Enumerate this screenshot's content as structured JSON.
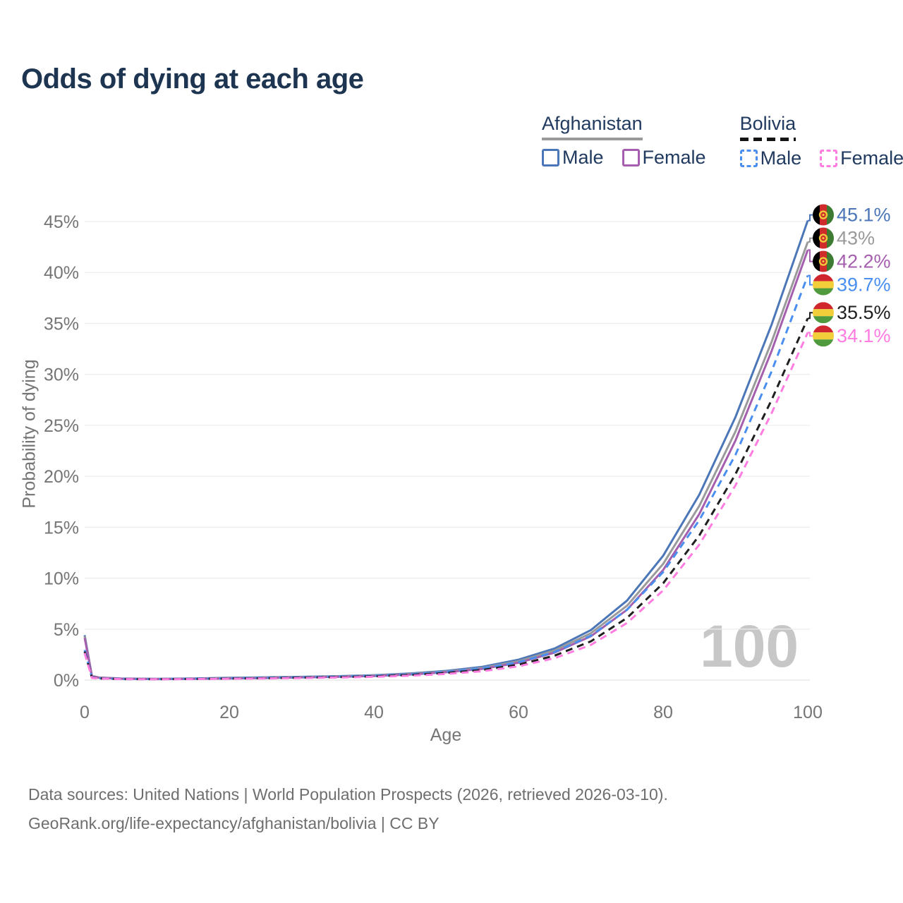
{
  "page": {
    "title": "Odds of dying at each age",
    "watermark": "100"
  },
  "legend": {
    "groups": [
      {
        "country": "Afghanistan",
        "underline_style": "solid",
        "underline_color": "#9a9a9a",
        "items": [
          {
            "label": "Male",
            "color": "#4b76b8",
            "dashed": false
          },
          {
            "label": "Female",
            "color": "#a55fae",
            "dashed": false
          }
        ]
      },
      {
        "country": "Bolivia",
        "underline_style": "dashed",
        "underline_color": "#141414",
        "items": [
          {
            "label": "Male",
            "color": "#4a8ff0",
            "dashed": true
          },
          {
            "label": "Female",
            "color": "#ff7de0",
            "dashed": true
          }
        ]
      }
    ]
  },
  "axes": {
    "y_label": "Probability of dying",
    "x_label": "Age",
    "y_ticks": [
      {
        "v": 0,
        "label": "0%"
      },
      {
        "v": 5,
        "label": "5%"
      },
      {
        "v": 10,
        "label": "10%"
      },
      {
        "v": 15,
        "label": "15%"
      },
      {
        "v": 20,
        "label": "20%"
      },
      {
        "v": 25,
        "label": "25%"
      },
      {
        "v": 30,
        "label": "30%"
      },
      {
        "v": 35,
        "label": "35%"
      },
      {
        "v": 40,
        "label": "40%"
      },
      {
        "v": 45,
        "label": "45%"
      }
    ],
    "x_ticks": [
      {
        "v": 0,
        "label": "0"
      },
      {
        "v": 20,
        "label": "20"
      },
      {
        "v": 40,
        "label": "40"
      },
      {
        "v": 60,
        "label": "60"
      },
      {
        "v": 80,
        "label": "80"
      },
      {
        "v": 100,
        "label": "100"
      }
    ]
  },
  "footer": {
    "line1": "Data sources: United Nations | World Population Prospects (2026, retrieved 2026-03-10).",
    "line2": "GeoRank.org/life-expectancy/afghanistan/bolivia | CC BY"
  },
  "chart_data": {
    "type": "line",
    "title": "Odds of dying at each age",
    "xlabel": "Age",
    "ylabel": "Probability of dying",
    "xlim": [
      0,
      100
    ],
    "ylim": [
      0,
      45
    ],
    "grid": true,
    "legend_position": "top-right",
    "x": [
      0,
      1,
      2,
      5,
      10,
      15,
      20,
      25,
      30,
      35,
      40,
      45,
      50,
      55,
      60,
      65,
      70,
      75,
      80,
      85,
      90,
      95,
      100
    ],
    "series": [
      {
        "name": "Afghanistan Male",
        "country": "Afghanistan",
        "sex": "Male",
        "style": "solid",
        "color": "#4b76b8",
        "flag": "afghanistan",
        "end_label": "45.1%",
        "values": [
          4.4,
          0.4,
          0.25,
          0.15,
          0.12,
          0.16,
          0.22,
          0.27,
          0.32,
          0.38,
          0.48,
          0.65,
          0.9,
          1.3,
          2.0,
          3.1,
          4.9,
          7.8,
          12.2,
          18.2,
          25.8,
          34.9,
          45.1
        ]
      },
      {
        "name": "Afghanistan Both sexes",
        "country": "Afghanistan",
        "sex": "Both",
        "style": "solid",
        "color": "#9a9a9a",
        "flag": "afghanistan",
        "end_label": "43%",
        "values": [
          4.3,
          0.38,
          0.24,
          0.14,
          0.11,
          0.14,
          0.19,
          0.24,
          0.29,
          0.35,
          0.44,
          0.6,
          0.83,
          1.2,
          1.85,
          2.9,
          4.6,
          7.3,
          11.4,
          17.1,
          24.4,
          33.2,
          43.0
        ]
      },
      {
        "name": "Afghanistan Female",
        "country": "Afghanistan",
        "sex": "Female",
        "style": "solid",
        "color": "#a55fae",
        "flag": "afghanistan",
        "end_label": "42.2%",
        "values": [
          4.15,
          0.36,
          0.23,
          0.13,
          0.1,
          0.12,
          0.16,
          0.2,
          0.26,
          0.32,
          0.4,
          0.55,
          0.77,
          1.1,
          1.7,
          2.7,
          4.3,
          6.9,
          10.8,
          16.3,
          23.5,
          32.3,
          42.2
        ]
      },
      {
        "name": "Bolivia Male",
        "country": "Bolivia",
        "sex": "Male",
        "style": "dashed",
        "color": "#4a8ff0",
        "flag": "bolivia",
        "end_label": "39.7%",
        "values": [
          2.95,
          0.25,
          0.17,
          0.11,
          0.1,
          0.13,
          0.18,
          0.23,
          0.28,
          0.34,
          0.42,
          0.57,
          0.8,
          1.15,
          1.75,
          2.75,
          4.35,
          6.9,
          10.6,
          15.7,
          22.1,
          30.3,
          39.7
        ]
      },
      {
        "name": "Bolivia Both sexes",
        "country": "Bolivia",
        "sex": "Both",
        "style": "dashed",
        "color": "#1f1f1f",
        "flag": "bolivia",
        "end_label": "35.5%",
        "values": [
          2.8,
          0.23,
          0.16,
          0.1,
          0.09,
          0.11,
          0.15,
          0.19,
          0.24,
          0.29,
          0.37,
          0.5,
          0.7,
          1.0,
          1.5,
          2.4,
          3.8,
          6.1,
          9.5,
          14.2,
          20.2,
          27.5,
          35.5
        ]
      },
      {
        "name": "Bolivia Female",
        "country": "Bolivia",
        "sex": "Female",
        "style": "dashed",
        "color": "#ff7de0",
        "flag": "bolivia",
        "end_label": "34.1%",
        "values": [
          2.65,
          0.21,
          0.15,
          0.1,
          0.08,
          0.1,
          0.13,
          0.16,
          0.2,
          0.25,
          0.32,
          0.43,
          0.6,
          0.87,
          1.35,
          2.15,
          3.45,
          5.6,
          8.8,
          13.3,
          19.1,
          26.2,
          34.1
        ]
      }
    ]
  }
}
